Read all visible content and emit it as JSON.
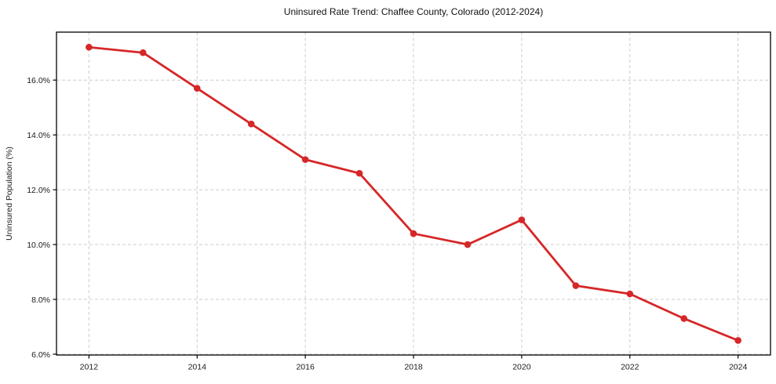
{
  "chart_data": {
    "type": "line",
    "title": "Uninsured Rate Trend: Chaffee County, Colorado (2012-2024)",
    "xlabel": "",
    "ylabel": "Uninsured Population (%)",
    "x": [
      2012,
      2013,
      2014,
      2015,
      2016,
      2017,
      2018,
      2019,
      2020,
      2021,
      2022,
      2023,
      2024
    ],
    "values": [
      17.2,
      17.0,
      15.7,
      14.4,
      13.1,
      12.6,
      10.4,
      10.0,
      10.9,
      8.5,
      8.2,
      7.3,
      6.5
    ],
    "xticks": [
      2012,
      2014,
      2016,
      2018,
      2020,
      2022,
      2024
    ],
    "xtick_labels": [
      "2012",
      "2014",
      "2016",
      "2018",
      "2020",
      "2022",
      "2024"
    ],
    "yticks": [
      6,
      8,
      10,
      12,
      14,
      16
    ],
    "ytick_labels": [
      "6.0%",
      "8.0%",
      "10.0%",
      "12.0%",
      "14.0%",
      "16.0%"
    ],
    "xlim": [
      2011.4,
      2024.6
    ],
    "ylim": [
      5.97,
      17.75
    ],
    "grid": true,
    "grid_style": "dashed",
    "legend": "none",
    "line_color": "#d62728",
    "marker": "circle",
    "grid_color": "#cccccc",
    "axis_color": "#000000",
    "background": "#ffffff"
  }
}
